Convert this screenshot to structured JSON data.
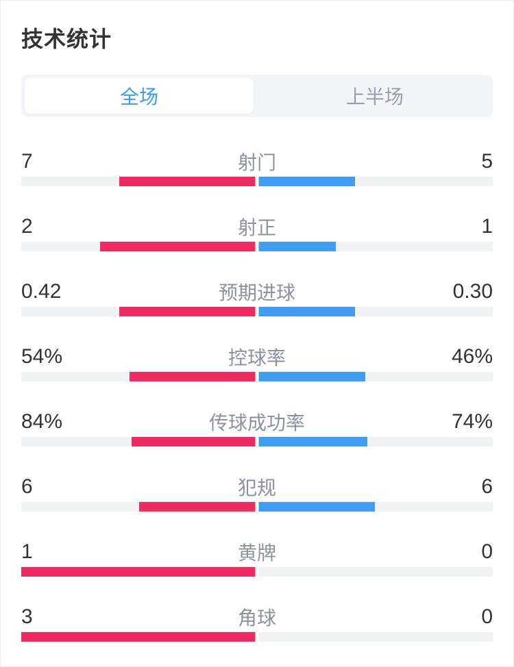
{
  "title": "技术统计",
  "tabs": {
    "items": [
      {
        "label": "全场",
        "active": true
      },
      {
        "label": "上半场",
        "active": false
      }
    ]
  },
  "stats": {
    "rows": [
      {
        "label": "射门",
        "left": "7",
        "right": "5",
        "left_value": 7,
        "right_value": 5
      },
      {
        "label": "射正",
        "left": "2",
        "right": "1",
        "left_value": 2,
        "right_value": 1
      },
      {
        "label": "预期进球",
        "left": "0.42",
        "right": "0.30",
        "left_value": 0.42,
        "right_value": 0.3
      },
      {
        "label": "控球率",
        "left": "54%",
        "right": "46%",
        "left_value": 54,
        "right_value": 46
      },
      {
        "label": "传球成功率",
        "left": "84%",
        "right": "74%",
        "left_value": 84,
        "right_value": 74
      },
      {
        "label": "犯规",
        "left": "6",
        "right": "6",
        "left_value": 6,
        "right_value": 6
      },
      {
        "label": "黄牌",
        "left": "1",
        "right": "0",
        "left_value": 1,
        "right_value": 0
      },
      {
        "label": "角球",
        "left": "3",
        "right": "0",
        "left_value": 3,
        "right_value": 0
      }
    ]
  },
  "colors": {
    "home": "#F02A62",
    "away": "#3F9EF4",
    "track": "#F1F2F3",
    "tab_track_bg": "#F3F5F8",
    "active_tab_text": "#3B9BF2",
    "inactive_tab_text": "#99A0AC",
    "label_gray": "#8C929E",
    "value_dark": "#333333"
  },
  "chart_data": {
    "type": "bar",
    "title": "技术统计",
    "categories": [
      "射门",
      "射正",
      "预期进球",
      "控球率",
      "传球成功率",
      "犯规",
      "黄牌",
      "角球"
    ],
    "series": [
      {
        "name": "home",
        "color": "#F02A62",
        "values": [
          7,
          2,
          0.42,
          54,
          84,
          6,
          1,
          3
        ]
      },
      {
        "name": "away",
        "color": "#3F9EF4",
        "values": [
          5,
          1,
          0.3,
          46,
          74,
          6,
          0,
          0
        ]
      }
    ],
    "layout": "paired horizontal bars from center, each side scaled to value/(left+right) of half track width"
  }
}
